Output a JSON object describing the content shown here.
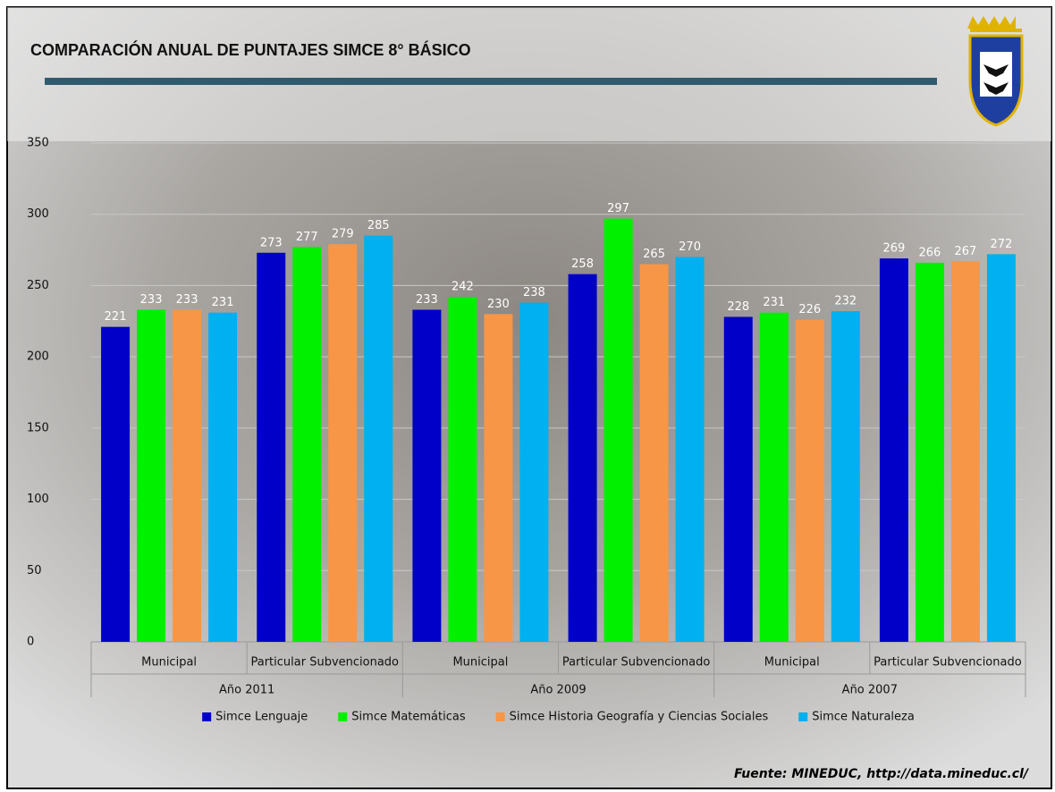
{
  "chart_data": {
    "type": "bar",
    "title": "COMPARACIÓN ANUAL DE PUNTAJES SIMCE 8° BÁSICO",
    "categories": [
      "Municipal",
      "Particular Subvencionado",
      "Municipal",
      "Particular Subvencionado",
      "Municipal",
      "Particular Subvencionado"
    ],
    "groups": [
      "Año 2011",
      "Año 2009",
      "Año 2007"
    ],
    "series": [
      {
        "name": "Simce Lenguaje",
        "color": "#0000c8",
        "values": [
          221,
          273,
          233,
          258,
          228,
          269
        ]
      },
      {
        "name": "Simce Matemáticas",
        "color": "#00f000",
        "values": [
          233,
          277,
          242,
          297,
          231,
          266
        ]
      },
      {
        "name": "Simce Historia Geografía y Ciencias Sociales",
        "color": "#f79646",
        "values": [
          233,
          279,
          230,
          265,
          226,
          267
        ]
      },
      {
        "name": "Simce Naturaleza",
        "color": "#00b0f0",
        "values": [
          231,
          285,
          238,
          270,
          232,
          272
        ]
      }
    ],
    "ylim": [
      0,
      350
    ],
    "yticks": [
      0,
      50,
      100,
      150,
      200,
      250,
      300,
      350
    ],
    "grid": true,
    "legend": "bottom",
    "source": "Fuente: MINEDUC, http://data.mineduc.cl/"
  }
}
